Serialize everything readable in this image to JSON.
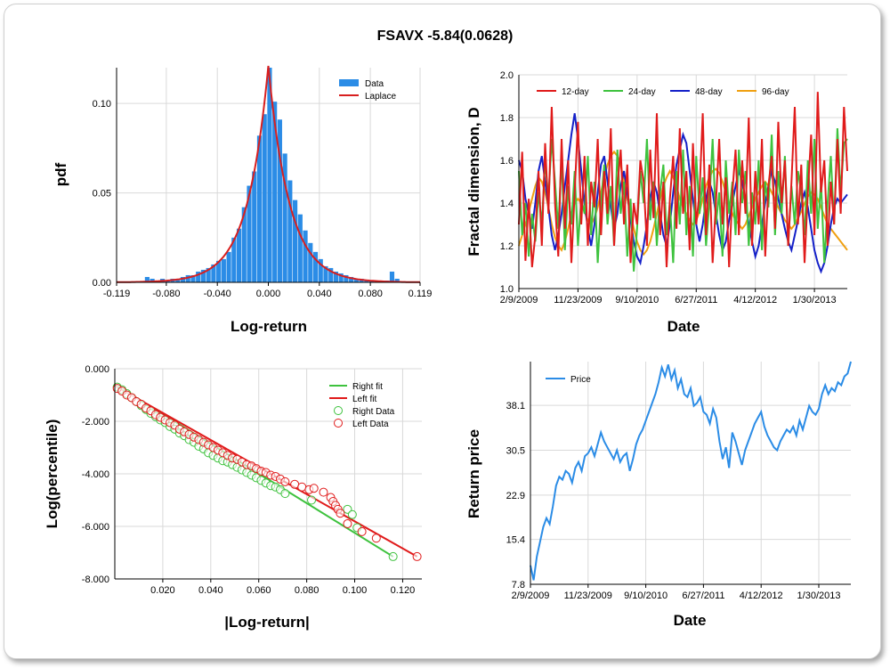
{
  "page": {
    "title": "FSAVX -5.84(0.0628)"
  },
  "chart_data": [
    {
      "id": "hist",
      "type": "bar",
      "xlabel": "Log-return",
      "ylabel": "pdf",
      "xlim": [
        -0.119,
        0.119
      ],
      "ylim": [
        0,
        0.12
      ],
      "xticks": [
        "-0.119",
        "-0.080",
        "-0.040",
        "0.000",
        "0.040",
        "0.080",
        "0.119"
      ],
      "xtick_values": [
        -0.119,
        -0.08,
        -0.04,
        0.0,
        0.04,
        0.08,
        0.119
      ],
      "yticks": [
        "0.00",
        "0.05",
        "0.10"
      ],
      "ytick_values": [
        0,
        0.05,
        0.1
      ],
      "legend": [
        "Data",
        "Laplace"
      ],
      "colors": {
        "bars": "#2b8ce6",
        "fit": "#d81f1f"
      },
      "bin_centers": [
        -0.095,
        -0.091,
        -0.087,
        -0.083,
        -0.079,
        -0.075,
        -0.071,
        -0.067,
        -0.063,
        -0.059,
        -0.055,
        -0.051,
        -0.047,
        -0.043,
        -0.039,
        -0.035,
        -0.031,
        -0.027,
        -0.023,
        -0.019,
        -0.015,
        -0.011,
        -0.007,
        -0.003,
        0.001,
        0.005,
        0.009,
        0.013,
        0.017,
        0.021,
        0.025,
        0.029,
        0.033,
        0.037,
        0.041,
        0.045,
        0.049,
        0.053,
        0.057,
        0.061,
        0.065,
        0.069,
        0.073,
        0.077,
        0.081,
        0.085,
        0.089,
        0.093,
        0.097,
        0.101
      ],
      "values": [
        0.003,
        0.002,
        0.001,
        0.002,
        0.001,
        0.002,
        0.002,
        0.003,
        0.004,
        0.004,
        0.006,
        0.007,
        0.008,
        0.01,
        0.012,
        0.013,
        0.017,
        0.025,
        0.03,
        0.042,
        0.054,
        0.062,
        0.082,
        0.094,
        0.122,
        0.101,
        0.091,
        0.072,
        0.057,
        0.046,
        0.038,
        0.029,
        0.022,
        0.017,
        0.013,
        0.009,
        0.008,
        0.006,
        0.005,
        0.004,
        0.003,
        0.002,
        0.002,
        0.001,
        0.001,
        0.001,
        0.001,
        0.001,
        0.006,
        0.002
      ],
      "laplace": {
        "location": 0.0,
        "peak": 0.121,
        "scale": 0.0165
      }
    },
    {
      "id": "fractal",
      "type": "line",
      "xlabel": "Date",
      "ylabel": "Fractal dimension, D",
      "ylim": [
        1.0,
        2.0
      ],
      "xticks": [
        "2/9/2009",
        "11/23/2009",
        "9/10/2010",
        "6/27/2011",
        "4/12/2012",
        "1/30/2013"
      ],
      "yticks": [
        "1.0",
        "1.2",
        "1.4",
        "1.6",
        "1.8",
        "2.0"
      ],
      "ytick_values": [
        1.0,
        1.2,
        1.4,
        1.6,
        1.8,
        2.0
      ],
      "x_range": [
        0,
        100
      ],
      "xtick_values": [
        0,
        18,
        36,
        54,
        72,
        90
      ],
      "series": [
        {
          "name": "12-day",
          "color": "#e01b1b",
          "values": [
            1.3,
            1.64,
            1.13,
            1.42,
            1.1,
            1.25,
            1.55,
            1.2,
            1.68,
            1.35,
            1.85,
            1.4,
            1.15,
            1.7,
            1.28,
            1.6,
            1.12,
            1.45,
            1.78,
            1.3,
            1.62,
            1.2,
            1.5,
            1.38,
            1.7,
            1.25,
            1.55,
            1.35,
            1.75,
            1.2,
            1.48,
            1.65,
            1.3,
            1.58,
            1.12,
            1.4,
            1.3,
            1.6,
            1.5,
            1.2,
            1.65,
            1.33,
            1.82,
            1.25,
            1.5,
            1.1,
            1.42,
            1.62,
            1.28,
            1.75,
            1.35,
            1.55,
            1.18,
            1.68,
            1.3,
            1.45,
            1.82,
            1.25,
            1.58,
            1.12,
            1.4,
            1.7,
            1.3,
            1.52,
            1.1,
            1.45,
            1.65,
            1.25,
            1.6,
            1.35,
            1.8,
            1.2,
            1.55,
            1.3,
            1.7,
            1.15,
            1.48,
            1.62,
            1.28,
            1.78,
            1.4,
            1.6,
            1.2,
            1.5,
            1.85,
            1.3,
            1.58,
            1.12,
            1.45,
            1.72,
            1.25,
            1.92,
            1.45,
            1.6,
            1.2,
            1.5,
            1.3,
            1.7,
            1.35,
            1.85,
            1.55
          ]
        },
        {
          "name": "24-day",
          "color": "#3ec23e",
          "values": [
            1.55,
            1.25,
            1.4,
            1.15,
            1.35,
            1.22,
            1.45,
            1.3,
            1.6,
            1.42,
            1.7,
            1.5,
            1.28,
            1.62,
            1.18,
            1.48,
            1.3,
            1.55,
            1.2,
            1.42,
            1.35,
            1.62,
            1.25,
            1.5,
            1.12,
            1.4,
            1.58,
            1.3,
            1.48,
            1.2,
            1.65,
            1.35,
            1.5,
            1.15,
            1.42,
            1.08,
            1.28,
            1.55,
            1.4,
            1.7,
            1.32,
            1.5,
            1.2,
            1.45,
            1.58,
            1.25,
            1.4,
            1.12,
            1.55,
            1.3,
            1.65,
            1.25,
            1.48,
            1.15,
            1.62,
            1.35,
            1.52,
            1.2,
            1.4,
            1.7,
            1.3,
            1.45,
            1.15,
            1.6,
            1.35,
            1.5,
            1.25,
            1.65,
            1.4,
            1.55,
            1.2,
            1.45,
            1.3,
            1.6,
            1.18,
            1.5,
            1.38,
            1.72,
            1.25,
            1.55,
            1.35,
            1.62,
            1.2,
            1.48,
            1.3,
            1.55,
            1.45,
            1.25,
            1.6,
            1.35,
            1.7,
            1.28,
            1.5,
            1.12,
            1.4,
            1.62,
            1.3,
            1.75,
            1.45,
            1.68,
            1.7
          ]
        },
        {
          "name": "48-day",
          "color": "#1420c8",
          "values": [
            1.6,
            1.55,
            1.42,
            1.35,
            1.28,
            1.4,
            1.55,
            1.62,
            1.5,
            1.38,
            1.25,
            1.18,
            1.25,
            1.35,
            1.48,
            1.6,
            1.72,
            1.82,
            1.7,
            1.55,
            1.4,
            1.28,
            1.2,
            1.3,
            1.45,
            1.58,
            1.62,
            1.5,
            1.38,
            1.28,
            1.35,
            1.48,
            1.55,
            1.45,
            1.32,
            1.22,
            1.15,
            1.12,
            1.2,
            1.3,
            1.42,
            1.5,
            1.45,
            1.35,
            1.25,
            1.2,
            1.3,
            1.45,
            1.58,
            1.65,
            1.72,
            1.68,
            1.55,
            1.42,
            1.3,
            1.22,
            1.3,
            1.42,
            1.5,
            1.45,
            1.35,
            1.25,
            1.18,
            1.22,
            1.32,
            1.4,
            1.48,
            1.55,
            1.5,
            1.4,
            1.3,
            1.22,
            1.15,
            1.2,
            1.3,
            1.4,
            1.48,
            1.55,
            1.5,
            1.42,
            1.35,
            1.28,
            1.22,
            1.18,
            1.25,
            1.32,
            1.4,
            1.45,
            1.38,
            1.28,
            1.18,
            1.12,
            1.08,
            1.12,
            1.2,
            1.3,
            1.38,
            1.42,
            1.4,
            1.42,
            1.44
          ]
        },
        {
          "name": "96-day",
          "color": "#f0a010",
          "values": [
            1.2,
            1.25,
            1.3,
            1.36,
            1.42,
            1.48,
            1.52,
            1.5,
            1.45,
            1.38,
            1.3,
            1.24,
            1.2,
            1.18,
            1.22,
            1.28,
            1.35,
            1.4,
            1.42,
            1.4,
            1.36,
            1.32,
            1.3,
            1.33,
            1.38,
            1.45,
            1.52,
            1.58,
            1.62,
            1.64,
            1.62,
            1.58,
            1.5,
            1.42,
            1.35,
            1.28,
            1.22,
            1.18,
            1.16,
            1.18,
            1.22,
            1.28,
            1.35,
            1.42,
            1.48,
            1.52,
            1.55,
            1.52,
            1.48,
            1.42,
            1.38,
            1.35,
            1.32,
            1.3,
            1.32,
            1.36,
            1.42,
            1.48,
            1.52,
            1.55,
            1.56,
            1.54,
            1.5,
            1.45,
            1.4,
            1.35,
            1.32,
            1.3,
            1.28,
            1.3,
            1.34,
            1.38,
            1.42,
            1.45,
            1.48,
            1.5,
            1.48,
            1.45,
            1.42,
            1.38,
            1.35,
            1.32,
            1.3,
            1.28,
            1.3,
            1.33,
            1.36,
            1.4,
            1.43,
            1.45,
            1.44,
            1.42,
            1.38,
            1.34,
            1.3,
            1.28,
            1.26,
            1.24,
            1.22,
            1.2,
            1.18
          ]
        }
      ]
    },
    {
      "id": "tails",
      "type": "scatter",
      "xlabel": "|Log-return|",
      "ylabel": "Log(percentile)",
      "xlim": [
        0,
        0.128
      ],
      "ylim": [
        -8.0,
        0.0
      ],
      "xticks": [
        "0.020",
        "0.040",
        "0.060",
        "0.080",
        "0.100",
        "0.120"
      ],
      "xtick_values": [
        0.02,
        0.04,
        0.06,
        0.08,
        0.1,
        0.12
      ],
      "yticks": [
        "0.000",
        "-2.000",
        "-4.000",
        "-6.000",
        "-8.000"
      ],
      "ytick_values": [
        0,
        -2,
        -4,
        -6,
        -8
      ],
      "legend": [
        "Right fit",
        "Left fit",
        "Right Data",
        "Left Data"
      ],
      "colors": {
        "right": "#3ec23e",
        "left": "#e01b1b"
      },
      "right_fit": {
        "x": [
          0.0,
          0.116
        ],
        "y": [
          -0.6,
          -7.15
        ]
      },
      "left_fit": {
        "x": [
          0.0,
          0.126
        ],
        "y": [
          -0.65,
          -7.15
        ]
      },
      "right_data": {
        "x": [
          0.001,
          0.003,
          0.005,
          0.007,
          0.009,
          0.011,
          0.013,
          0.015,
          0.017,
          0.019,
          0.021,
          0.023,
          0.025,
          0.027,
          0.029,
          0.031,
          0.033,
          0.035,
          0.037,
          0.039,
          0.041,
          0.043,
          0.045,
          0.047,
          0.049,
          0.051,
          0.053,
          0.055,
          0.057,
          0.059,
          0.061,
          0.063,
          0.065,
          0.067,
          0.069,
          0.071,
          0.082,
          0.097,
          0.099,
          0.101,
          0.116
        ],
        "y": [
          -0.7,
          -0.8,
          -0.95,
          -1.1,
          -1.25,
          -1.4,
          -1.55,
          -1.7,
          -1.82,
          -1.95,
          -2.05,
          -2.2,
          -2.3,
          -2.45,
          -2.55,
          -2.7,
          -2.8,
          -2.95,
          -3.05,
          -3.2,
          -3.3,
          -3.4,
          -3.5,
          -3.55,
          -3.65,
          -3.75,
          -3.85,
          -3.95,
          -4.05,
          -4.15,
          -4.25,
          -4.35,
          -4.45,
          -4.5,
          -4.6,
          -4.75,
          -5.0,
          -5.35,
          -5.55,
          -6.05,
          -7.15
        ]
      },
      "left_data": {
        "x": [
          0.001,
          0.003,
          0.005,
          0.007,
          0.009,
          0.011,
          0.013,
          0.015,
          0.017,
          0.019,
          0.021,
          0.023,
          0.025,
          0.027,
          0.029,
          0.031,
          0.033,
          0.035,
          0.037,
          0.039,
          0.041,
          0.043,
          0.045,
          0.047,
          0.049,
          0.051,
          0.053,
          0.055,
          0.057,
          0.059,
          0.061,
          0.063,
          0.065,
          0.067,
          0.069,
          0.071,
          0.075,
          0.078,
          0.081,
          0.083,
          0.087,
          0.09,
          0.091,
          0.092,
          0.093,
          0.094,
          0.097,
          0.103,
          0.109,
          0.126
        ],
        "y": [
          -0.75,
          -0.85,
          -1.0,
          -1.1,
          -1.25,
          -1.35,
          -1.5,
          -1.6,
          -1.75,
          -1.85,
          -1.95,
          -2.05,
          -2.15,
          -2.3,
          -2.4,
          -2.5,
          -2.6,
          -2.7,
          -2.8,
          -2.9,
          -3.0,
          -3.1,
          -3.2,
          -3.3,
          -3.4,
          -3.45,
          -3.55,
          -3.65,
          -3.7,
          -3.8,
          -3.9,
          -3.95,
          -4.05,
          -4.1,
          -4.2,
          -4.3,
          -4.4,
          -4.5,
          -4.6,
          -4.55,
          -4.7,
          -4.9,
          -5.05,
          -5.2,
          -5.35,
          -5.5,
          -5.9,
          -6.2,
          -6.45,
          -7.15
        ]
      }
    },
    {
      "id": "price",
      "type": "line",
      "xlabel": "Date",
      "ylabel": "Return price",
      "ylim": [
        7.8,
        45.5
      ],
      "xticks": [
        "2/9/2009",
        "11/23/2009",
        "9/10/2010",
        "6/27/2011",
        "4/12/2012",
        "1/30/2013"
      ],
      "xtick_values": [
        0,
        18,
        36,
        54,
        72,
        90
      ],
      "yticks": [
        "7.8",
        "15.4",
        "22.9",
        "30.5",
        "38.1"
      ],
      "ytick_values": [
        7.8,
        15.4,
        22.9,
        30.5,
        38.1
      ],
      "x_range": [
        0,
        100
      ],
      "legend": [
        "Price"
      ],
      "colors": {
        "line": "#2b8ce6"
      },
      "series": [
        {
          "name": "Price",
          "x": [
            0,
            1,
            2,
            3,
            4,
            5,
            6,
            7,
            8,
            9,
            10,
            11,
            12,
            13,
            14,
            15,
            16,
            17,
            18,
            19,
            20,
            21,
            22,
            23,
            24,
            25,
            26,
            27,
            28,
            29,
            30,
            31,
            32,
            33,
            34,
            35,
            36,
            37,
            38,
            39,
            40,
            41,
            42,
            43,
            44,
            45,
            46,
            47,
            48,
            49,
            50,
            51,
            52,
            53,
            54,
            55,
            56,
            57,
            58,
            59,
            60,
            61,
            62,
            63,
            64,
            65,
            66,
            67,
            68,
            69,
            70,
            71,
            72,
            73,
            74,
            75,
            76,
            77,
            78,
            79,
            80,
            81,
            82,
            83,
            84,
            85,
            86,
            87,
            88,
            89,
            90,
            91,
            92,
            93,
            94,
            95,
            96,
            97,
            98,
            99,
            100
          ],
          "values": [
            11.0,
            8.5,
            12.5,
            15.0,
            17.5,
            19.0,
            18.0,
            21.0,
            24.5,
            26.0,
            25.5,
            27.0,
            26.5,
            25.0,
            27.5,
            28.5,
            27.0,
            29.5,
            30.0,
            31.0,
            29.5,
            31.5,
            33.5,
            32.0,
            31.0,
            30.0,
            29.0,
            30.5,
            28.5,
            29.5,
            30.0,
            27.0,
            29.0,
            31.5,
            33.0,
            34.0,
            35.5,
            37.0,
            38.5,
            40.0,
            42.0,
            44.5,
            43.0,
            45.0,
            42.5,
            44.0,
            41.0,
            42.5,
            40.0,
            39.5,
            41.0,
            38.0,
            38.5,
            39.5,
            37.0,
            36.5,
            35.0,
            37.5,
            36.0,
            32.0,
            29.0,
            31.0,
            27.5,
            33.5,
            32.0,
            30.0,
            28.0,
            30.5,
            32.0,
            33.5,
            35.0,
            36.0,
            37.0,
            34.5,
            33.0,
            32.0,
            31.0,
            30.5,
            32.0,
            33.0,
            34.0,
            33.5,
            34.5,
            33.0,
            35.5,
            34.0,
            36.0,
            38.0,
            37.0,
            36.5,
            37.5,
            40.0,
            41.5,
            40.0,
            41.0,
            40.5,
            42.0,
            41.5,
            43.0,
            43.5,
            45.5
          ]
        }
      ]
    }
  ]
}
